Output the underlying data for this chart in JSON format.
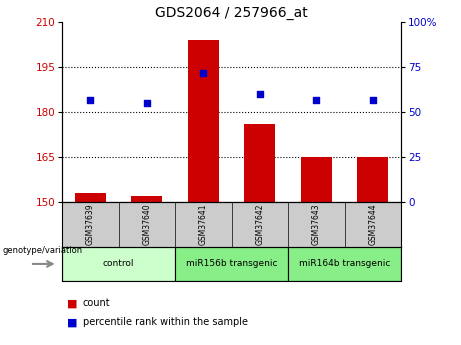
{
  "title": "GDS2064 / 257966_at",
  "samples": [
    "GSM37639",
    "GSM37640",
    "GSM37641",
    "GSM37642",
    "GSM37643",
    "GSM37644"
  ],
  "bar_values": [
    153,
    152,
    204,
    176,
    165,
    165
  ],
  "dot_values": [
    184,
    183,
    193,
    186,
    184,
    184
  ],
  "bar_baseline": 150,
  "ylim_left": [
    150,
    210
  ],
  "ylim_right": [
    0,
    100
  ],
  "yticks_left": [
    150,
    165,
    180,
    195,
    210
  ],
  "yticks_right": [
    0,
    25,
    50,
    75,
    100
  ],
  "bar_color": "#cc0000",
  "dot_color": "#0000cc",
  "groups": [
    {
      "label": "control",
      "indices": [
        0,
        1
      ],
      "color": "#ccffcc"
    },
    {
      "label": "miR156b transgenic",
      "indices": [
        2,
        3
      ],
      "color": "#88ee88"
    },
    {
      "label": "miR164b transgenic",
      "indices": [
        4,
        5
      ],
      "color": "#88ee88"
    }
  ],
  "xlabel_bottom": "genotype/variation",
  "legend_count_label": "count",
  "legend_pct_label": "percentile rank within the sample",
  "background_sample_row": "#cccccc",
  "grid_yticks": [
    165,
    180,
    195
  ]
}
